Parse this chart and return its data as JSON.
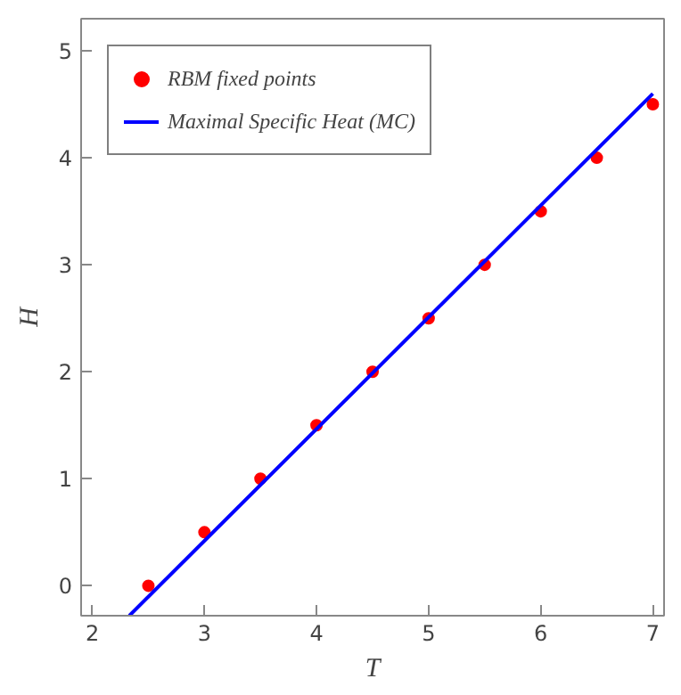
{
  "chart_data": {
    "type": "scatter",
    "xlabel": "T",
    "ylabel": "H",
    "xlim": [
      1.9,
      7.1
    ],
    "ylim": [
      -0.28,
      5.3
    ],
    "xticks": [
      2,
      3,
      4,
      5,
      6,
      7
    ],
    "yticks": [
      0,
      1,
      2,
      3,
      4,
      5
    ],
    "grid": false,
    "legend": "top left",
    "series": [
      {
        "name": "RBM fixed points",
        "marker": "circle",
        "color": "#ff0000",
        "x": [
          2.5,
          3,
          3.5,
          4,
          4.5,
          5,
          5.5,
          6,
          6.5,
          7
        ],
        "values": [
          0,
          0.5,
          1,
          1.5,
          2,
          2.5,
          3,
          3.5,
          4,
          4.5
        ]
      },
      {
        "name": "Maximal Specific Heat (MC)",
        "type": "line",
        "color": "#0000ff",
        "x": [
          2.33,
          7
        ],
        "values": [
          -0.28,
          4.6
        ]
      }
    ]
  }
}
